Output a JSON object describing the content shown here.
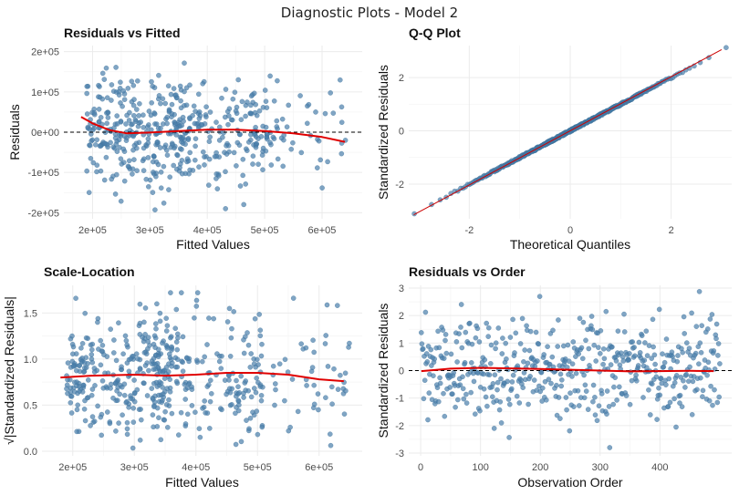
{
  "suptitle": "Diagnostic Plots - Model 2",
  "colors": {
    "points": "#4a7fab",
    "smooth": "#e00000",
    "qqline": "#cc0000",
    "refline": "#000000"
  },
  "chart_data": [
    {
      "id": "resid-fitted",
      "type": "scatter",
      "title": "Residuals vs Fitted",
      "xlabel": "Fitted Values",
      "ylabel": "Residuals",
      "xlim": [
        150000,
        670000
      ],
      "ylim": [
        -215000,
        215000
      ],
      "xticks": [
        200000,
        300000,
        400000,
        500000,
        600000
      ],
      "xtick_labels": [
        "2e+05",
        "3e+05",
        "4e+05",
        "5e+05",
        "6e+05"
      ],
      "yticks": [
        -200000,
        -100000,
        0,
        100000,
        200000
      ],
      "ytick_labels": [
        "-2e+05",
        "-1e+05",
        "0e+00",
        "1e+05",
        "2e+05"
      ],
      "hline": 0,
      "grid": true,
      "smooth": [
        [
          180000,
          38000
        ],
        [
          200000,
          22000
        ],
        [
          230000,
          5000
        ],
        [
          260000,
          -3000
        ],
        [
          300000,
          -1000
        ],
        [
          350000,
          3000
        ],
        [
          400000,
          6000
        ],
        [
          450000,
          6000
        ],
        [
          500000,
          3000
        ],
        [
          550000,
          -3000
        ],
        [
          600000,
          -12000
        ],
        [
          640000,
          -24000
        ]
      ],
      "generator": {
        "n": 500,
        "seed": 7,
        "kind": "resid"
      }
    },
    {
      "id": "qq",
      "type": "scatter",
      "title": "Q-Q Plot",
      "xlabel": "Theoretical Quantiles",
      "ylabel": "Standardized Residuals",
      "xlim": [
        -3.2,
        3.2
      ],
      "ylim": [
        -3.3,
        3.2
      ],
      "xticks": [
        -2,
        0,
        2
      ],
      "xtick_labels": [
        "-2",
        "0",
        "2"
      ],
      "yticks": [
        -2,
        0,
        2
      ],
      "ytick_labels": [
        "-2",
        "0",
        "2"
      ],
      "line": [
        [
          -3.1,
          -3.15
        ],
        [
          3.0,
          3.05
        ]
      ],
      "grid": true,
      "generator": {
        "n": 500,
        "seed": 11,
        "kind": "qq"
      }
    },
    {
      "id": "scale-location",
      "type": "scatter",
      "title": "Scale-Location",
      "xlabel": "Fitted Values",
      "ylabel": "√|Standardized Residuals|",
      "xlim": [
        150000,
        670000
      ],
      "ylim": [
        -0.05,
        1.8
      ],
      "xticks": [
        200000,
        300000,
        400000,
        500000,
        600000
      ],
      "xtick_labels": [
        "2e+05",
        "3e+05",
        "4e+05",
        "5e+05",
        "6e+05"
      ],
      "yticks": [
        0,
        0.5,
        1,
        1.5
      ],
      "ytick_labels": [
        "0.0",
        "0.5",
        "1.0",
        "1.5"
      ],
      "grid": true,
      "smooth": [
        [
          180000,
          0.8
        ],
        [
          230000,
          0.82
        ],
        [
          300000,
          0.83
        ],
        [
          350000,
          0.82
        ],
        [
          400000,
          0.83
        ],
        [
          450000,
          0.85
        ],
        [
          500000,
          0.85
        ],
        [
          550000,
          0.83
        ],
        [
          600000,
          0.78
        ],
        [
          640000,
          0.76
        ]
      ],
      "generator": {
        "n": 500,
        "seed": 23,
        "kind": "scale"
      }
    },
    {
      "id": "resid-order",
      "type": "scatter",
      "title": "Residuals vs Order",
      "xlabel": "Observation Order",
      "ylabel": "Standardized Residuals",
      "xlim": [
        -20,
        520
      ],
      "ylim": [
        -3.1,
        3.1
      ],
      "xticks": [
        0,
        100,
        200,
        300,
        400
      ],
      "xtick_labels": [
        "0",
        "100",
        "200",
        "300",
        "400"
      ],
      "yticks": [
        -3,
        -2,
        -1,
        0,
        1,
        2,
        3
      ],
      "ytick_labels": [
        "-3",
        "-2",
        "-1",
        "0",
        "1",
        "2",
        "3"
      ],
      "hline": 0,
      "grid": true,
      "smooth": [
        [
          1,
          -0.02
        ],
        [
          50,
          0.07
        ],
        [
          100,
          0.1
        ],
        [
          150,
          0.08
        ],
        [
          200,
          0.06
        ],
        [
          250,
          0.03
        ],
        [
          300,
          0.0
        ],
        [
          350,
          -0.03
        ],
        [
          400,
          -0.02
        ],
        [
          450,
          -0.01
        ],
        [
          490,
          -0.02
        ]
      ],
      "generator": {
        "n": 500,
        "seed": 31,
        "kind": "order"
      }
    }
  ]
}
